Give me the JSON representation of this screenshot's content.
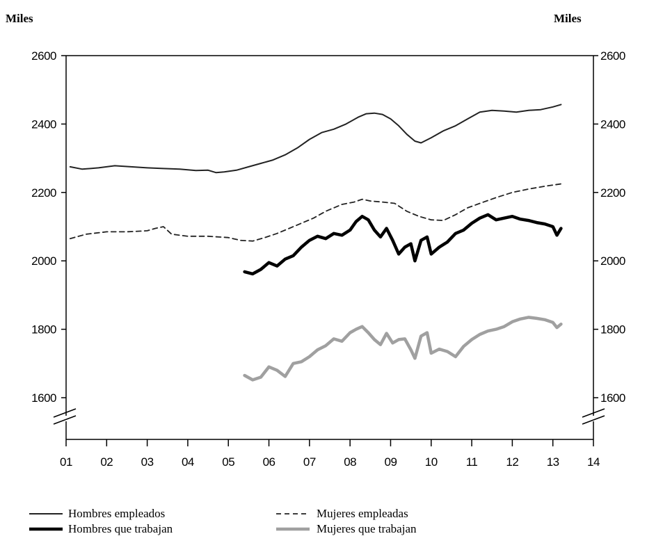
{
  "chart_data": {
    "type": "line",
    "title": "",
    "unit_left": "Miles",
    "unit_right": "Miles",
    "xlabel": "",
    "ylabel": "",
    "xlim": [
      2001,
      2014
    ],
    "ylim": [
      1600,
      2600
    ],
    "y_axis_break": true,
    "x_ticks": [
      {
        "v": 2001,
        "label": "01"
      },
      {
        "v": 2002,
        "label": "02"
      },
      {
        "v": 2003,
        "label": "03"
      },
      {
        "v": 2004,
        "label": "04"
      },
      {
        "v": 2005,
        "label": "05"
      },
      {
        "v": 2006,
        "label": "06"
      },
      {
        "v": 2007,
        "label": "07"
      },
      {
        "v": 2008,
        "label": "08"
      },
      {
        "v": 2009,
        "label": "09"
      },
      {
        "v": 2010,
        "label": "10"
      },
      {
        "v": 2011,
        "label": "11"
      },
      {
        "v": 2012,
        "label": "12"
      },
      {
        "v": 2013,
        "label": "13"
      },
      {
        "v": 2014,
        "label": "14"
      }
    ],
    "y_ticks": [
      {
        "v": 1600,
        "label": "1600"
      },
      {
        "v": 1800,
        "label": "1800"
      },
      {
        "v": 2000,
        "label": "2000"
      },
      {
        "v": 2200,
        "label": "2200"
      },
      {
        "v": 2400,
        "label": "2400"
      },
      {
        "v": 2600,
        "label": "2600"
      }
    ],
    "grid": false,
    "legend_position": "bottom",
    "series": [
      {
        "name": "Hombres empleados",
        "color": "#222222",
        "style": "solid-thin",
        "x": [
          2001.1,
          2001.4,
          2001.8,
          2002.2,
          2002.6,
          2003.0,
          2003.4,
          2003.8,
          2004.2,
          2004.5,
          2004.7,
          2004.9,
          2005.2,
          2005.5,
          2005.8,
          2006.1,
          2006.4,
          2006.7,
          2007.0,
          2007.3,
          2007.6,
          2007.9,
          2008.2,
          2008.4,
          2008.6,
          2008.8,
          2009.0,
          2009.2,
          2009.4,
          2009.6,
          2009.75,
          2010.0,
          2010.3,
          2010.6,
          2010.9,
          2011.2,
          2011.5,
          2011.8,
          2012.1,
          2012.4,
          2012.7,
          2013.0,
          2013.2
        ],
        "y": [
          2275,
          2268,
          2272,
          2278,
          2275,
          2272,
          2270,
          2268,
          2264,
          2265,
          2258,
          2260,
          2265,
          2275,
          2285,
          2295,
          2310,
          2330,
          2355,
          2375,
          2385,
          2400,
          2420,
          2430,
          2432,
          2428,
          2415,
          2395,
          2370,
          2350,
          2345,
          2360,
          2380,
          2395,
          2415,
          2435,
          2440,
          2438,
          2435,
          2440,
          2442,
          2450,
          2457
        ]
      },
      {
        "name": "Mujeres empleadas",
        "color": "#222222",
        "style": "dashed",
        "x": [
          2001.1,
          2001.5,
          2002.0,
          2002.5,
          2003.0,
          2003.2,
          2003.4,
          2003.6,
          2004.0,
          2004.5,
          2005.0,
          2005.3,
          2005.6,
          2005.9,
          2006.2,
          2006.5,
          2006.8,
          2007.1,
          2007.4,
          2007.8,
          2008.1,
          2008.3,
          2008.5,
          2008.8,
          2009.1,
          2009.4,
          2009.7,
          2010.0,
          2010.3,
          2010.6,
          2010.9,
          2011.2,
          2011.6,
          2012.0,
          2012.4,
          2012.8,
          2013.2
        ],
        "y": [
          2065,
          2078,
          2085,
          2085,
          2088,
          2095,
          2100,
          2078,
          2072,
          2072,
          2068,
          2060,
          2058,
          2068,
          2080,
          2095,
          2110,
          2125,
          2145,
          2165,
          2172,
          2180,
          2175,
          2172,
          2168,
          2145,
          2130,
          2120,
          2118,
          2135,
          2155,
          2168,
          2185,
          2200,
          2210,
          2218,
          2225
        ]
      },
      {
        "name": "Hombres que trabajan",
        "color": "#000000",
        "style": "solid-thick",
        "x": [
          2005.4,
          2005.6,
          2005.8,
          2006.0,
          2006.2,
          2006.4,
          2006.6,
          2006.8,
          2007.0,
          2007.2,
          2007.4,
          2007.6,
          2007.8,
          2008.0,
          2008.15,
          2008.3,
          2008.45,
          2008.6,
          2008.75,
          2008.9,
          2009.05,
          2009.2,
          2009.35,
          2009.5,
          2009.6,
          2009.75,
          2009.9,
          2010.0,
          2010.2,
          2010.4,
          2010.6,
          2010.8,
          2011.0,
          2011.2,
          2011.4,
          2011.6,
          2011.8,
          2012.0,
          2012.2,
          2012.4,
          2012.6,
          2012.8,
          2013.0,
          2013.1,
          2013.2
        ],
        "y": [
          1968,
          1962,
          1975,
          1995,
          1985,
          2005,
          2015,
          2040,
          2060,
          2072,
          2065,
          2080,
          2075,
          2090,
          2115,
          2130,
          2120,
          2090,
          2070,
          2095,
          2060,
          2020,
          2040,
          2050,
          2000,
          2060,
          2070,
          2020,
          2040,
          2055,
          2080,
          2090,
          2110,
          2125,
          2135,
          2120,
          2125,
          2130,
          2122,
          2118,
          2112,
          2108,
          2100,
          2075,
          2095
        ]
      },
      {
        "name": "Mujeres que trabajan",
        "color": "#a0a0a0",
        "style": "solid-thick",
        "x": [
          2005.4,
          2005.6,
          2005.8,
          2006.0,
          2006.2,
          2006.4,
          2006.6,
          2006.8,
          2007.0,
          2007.2,
          2007.4,
          2007.6,
          2007.8,
          2008.0,
          2008.15,
          2008.3,
          2008.45,
          2008.6,
          2008.75,
          2008.9,
          2009.05,
          2009.2,
          2009.35,
          2009.5,
          2009.6,
          2009.75,
          2009.9,
          2010.0,
          2010.2,
          2010.4,
          2010.6,
          2010.8,
          2011.0,
          2011.2,
          2011.4,
          2011.6,
          2011.8,
          2012.0,
          2012.2,
          2012.4,
          2012.6,
          2012.8,
          2013.0,
          2013.1,
          2013.2
        ],
        "y": [
          1665,
          1652,
          1660,
          1690,
          1680,
          1662,
          1700,
          1705,
          1720,
          1740,
          1752,
          1772,
          1765,
          1790,
          1800,
          1808,
          1790,
          1770,
          1755,
          1788,
          1760,
          1770,
          1772,
          1740,
          1715,
          1780,
          1790,
          1730,
          1742,
          1735,
          1720,
          1750,
          1770,
          1785,
          1795,
          1800,
          1808,
          1822,
          1830,
          1835,
          1832,
          1828,
          1820,
          1805,
          1815
        ]
      }
    ]
  }
}
